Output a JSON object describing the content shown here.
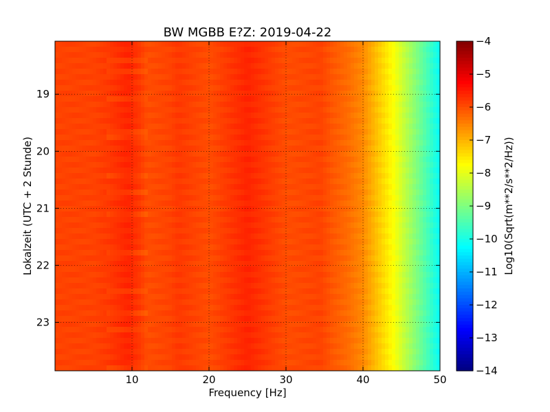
{
  "chart_data": {
    "type": "heatmap",
    "title": "BW MGBB E?Z: 2019-04-22",
    "xlabel": "Frequency [Hz]",
    "ylabel": "Lokalzeit (UTC + 2 Stunde)",
    "xlim": [
      0,
      50
    ],
    "ylim_hours": [
      18.07,
      23.85
    ],
    "y_axis_inverted": true,
    "x_ticks": [
      10,
      20,
      30,
      40,
      50
    ],
    "x_tick_labels": [
      "10",
      "20",
      "30",
      "40",
      "50"
    ],
    "y_ticks": [
      19,
      20,
      21,
      22,
      23
    ],
    "y_tick_labels": [
      "19",
      "20",
      "21",
      "22",
      "23"
    ],
    "grid": true,
    "colorbar": {
      "label": "Log10(Sqrt(m**2/s**2/Hz))",
      "range": [
        -14,
        -4
      ],
      "ticks": [
        -4,
        -5,
        -6,
        -7,
        -8,
        -9,
        -10,
        -11,
        -12,
        -13,
        -14
      ],
      "tick_labels": [
        "−4",
        "−5",
        "−6",
        "−7",
        "−8",
        "−9",
        "−10",
        "−11",
        "−12",
        "−13",
        "−14"
      ],
      "colormap": "jet"
    },
    "spectrum_profile": {
      "frequency_hz": [
        0,
        5,
        7,
        9.5,
        11,
        12,
        15,
        16,
        20,
        25,
        30,
        34.5,
        36,
        38,
        40,
        41,
        42,
        43,
        44,
        45,
        46,
        47,
        48,
        49,
        49.5,
        50
      ],
      "log10_amplitude": [
        -5.9,
        -5.9,
        -5.8,
        -5.6,
        -5.8,
        -6.0,
        -5.9,
        -5.8,
        -6.0,
        -5.6,
        -6.0,
        -5.9,
        -6.1,
        -6.3,
        -6.6,
        -6.9,
        -7.2,
        -7.5,
        -7.8,
        -8.2,
        -8.6,
        -9.0,
        -9.4,
        -9.8,
        -10.0,
        -10.2
      ]
    }
  }
}
